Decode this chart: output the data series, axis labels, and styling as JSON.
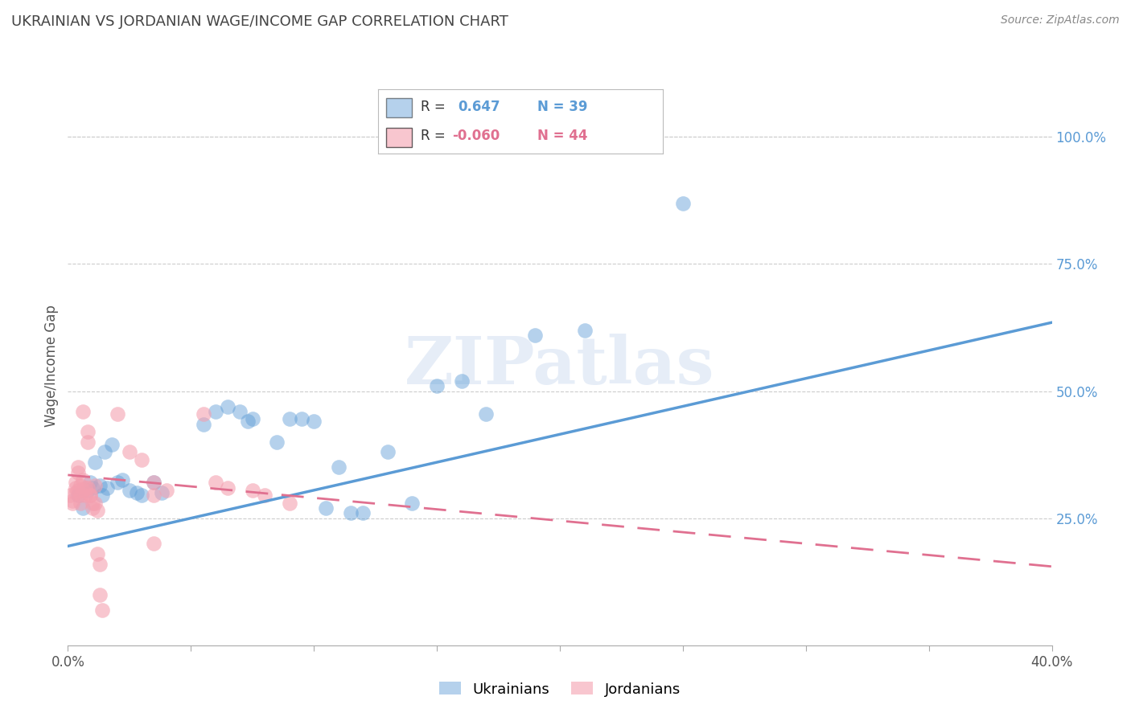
{
  "title": "UKRAINIAN VS JORDANIAN WAGE/INCOME GAP CORRELATION CHART",
  "source": "Source: ZipAtlas.com",
  "ylabel": "Wage/Income Gap",
  "watermark": "ZIPatlas",
  "right_ytick_labels": [
    "100.0%",
    "75.0%",
    "50.0%",
    "25.0%"
  ],
  "right_ytick_values": [
    1.0,
    0.75,
    0.5,
    0.25
  ],
  "x_range": [
    0.0,
    0.4
  ],
  "y_range": [
    0.0,
    1.1
  ],
  "blue_line": {
    "x0": 0.0,
    "y0": 0.195,
    "x1": 0.4,
    "y1": 0.635
  },
  "pink_line": {
    "x0": 0.0,
    "y0": 0.335,
    "x1": 0.4,
    "y1": 0.155
  },
  "ukrainian_points": [
    [
      0.004,
      0.295
    ],
    [
      0.006,
      0.27
    ],
    [
      0.008,
      0.305
    ],
    [
      0.009,
      0.32
    ],
    [
      0.01,
      0.31
    ],
    [
      0.011,
      0.36
    ],
    [
      0.013,
      0.315
    ],
    [
      0.014,
      0.295
    ],
    [
      0.015,
      0.38
    ],
    [
      0.016,
      0.31
    ],
    [
      0.018,
      0.395
    ],
    [
      0.02,
      0.32
    ],
    [
      0.022,
      0.325
    ],
    [
      0.025,
      0.305
    ],
    [
      0.028,
      0.3
    ],
    [
      0.03,
      0.295
    ],
    [
      0.035,
      0.32
    ],
    [
      0.038,
      0.3
    ],
    [
      0.055,
      0.435
    ],
    [
      0.06,
      0.46
    ],
    [
      0.065,
      0.47
    ],
    [
      0.07,
      0.46
    ],
    [
      0.073,
      0.44
    ],
    [
      0.075,
      0.445
    ],
    [
      0.085,
      0.4
    ],
    [
      0.09,
      0.445
    ],
    [
      0.095,
      0.445
    ],
    [
      0.1,
      0.44
    ],
    [
      0.105,
      0.27
    ],
    [
      0.11,
      0.35
    ],
    [
      0.115,
      0.26
    ],
    [
      0.12,
      0.26
    ],
    [
      0.13,
      0.38
    ],
    [
      0.14,
      0.28
    ],
    [
      0.15,
      0.51
    ],
    [
      0.16,
      0.52
    ],
    [
      0.17,
      0.455
    ],
    [
      0.19,
      0.61
    ],
    [
      0.21,
      0.62
    ],
    [
      0.25,
      0.87
    ]
  ],
  "jordanian_points": [
    [
      0.001,
      0.295
    ],
    [
      0.002,
      0.28
    ],
    [
      0.002,
      0.285
    ],
    [
      0.003,
      0.31
    ],
    [
      0.003,
      0.3
    ],
    [
      0.003,
      0.32
    ],
    [
      0.004,
      0.305
    ],
    [
      0.004,
      0.35
    ],
    [
      0.004,
      0.34
    ],
    [
      0.005,
      0.28
    ],
    [
      0.005,
      0.295
    ],
    [
      0.005,
      0.315
    ],
    [
      0.006,
      0.46
    ],
    [
      0.006,
      0.305
    ],
    [
      0.006,
      0.325
    ],
    [
      0.007,
      0.295
    ],
    [
      0.007,
      0.31
    ],
    [
      0.008,
      0.31
    ],
    [
      0.008,
      0.4
    ],
    [
      0.008,
      0.42
    ],
    [
      0.009,
      0.295
    ],
    [
      0.009,
      0.295
    ],
    [
      0.01,
      0.28
    ],
    [
      0.01,
      0.27
    ],
    [
      0.011,
      0.315
    ],
    [
      0.011,
      0.28
    ],
    [
      0.012,
      0.265
    ],
    [
      0.012,
      0.18
    ],
    [
      0.013,
      0.16
    ],
    [
      0.013,
      0.1
    ],
    [
      0.014,
      0.07
    ],
    [
      0.02,
      0.455
    ],
    [
      0.025,
      0.38
    ],
    [
      0.03,
      0.365
    ],
    [
      0.035,
      0.32
    ],
    [
      0.035,
      0.295
    ],
    [
      0.035,
      0.2
    ],
    [
      0.04,
      0.305
    ],
    [
      0.055,
      0.455
    ],
    [
      0.06,
      0.32
    ],
    [
      0.065,
      0.31
    ],
    [
      0.075,
      0.305
    ],
    [
      0.08,
      0.295
    ],
    [
      0.09,
      0.28
    ]
  ],
  "bg_color": "#ffffff",
  "blue_color": "#5b9bd5",
  "pink_color": "#f4a0b0",
  "pink_line_color": "#e07090",
  "grid_color": "#cccccc",
  "right_label_color": "#5b9bd5",
  "title_color": "#444444",
  "source_color": "#888888"
}
